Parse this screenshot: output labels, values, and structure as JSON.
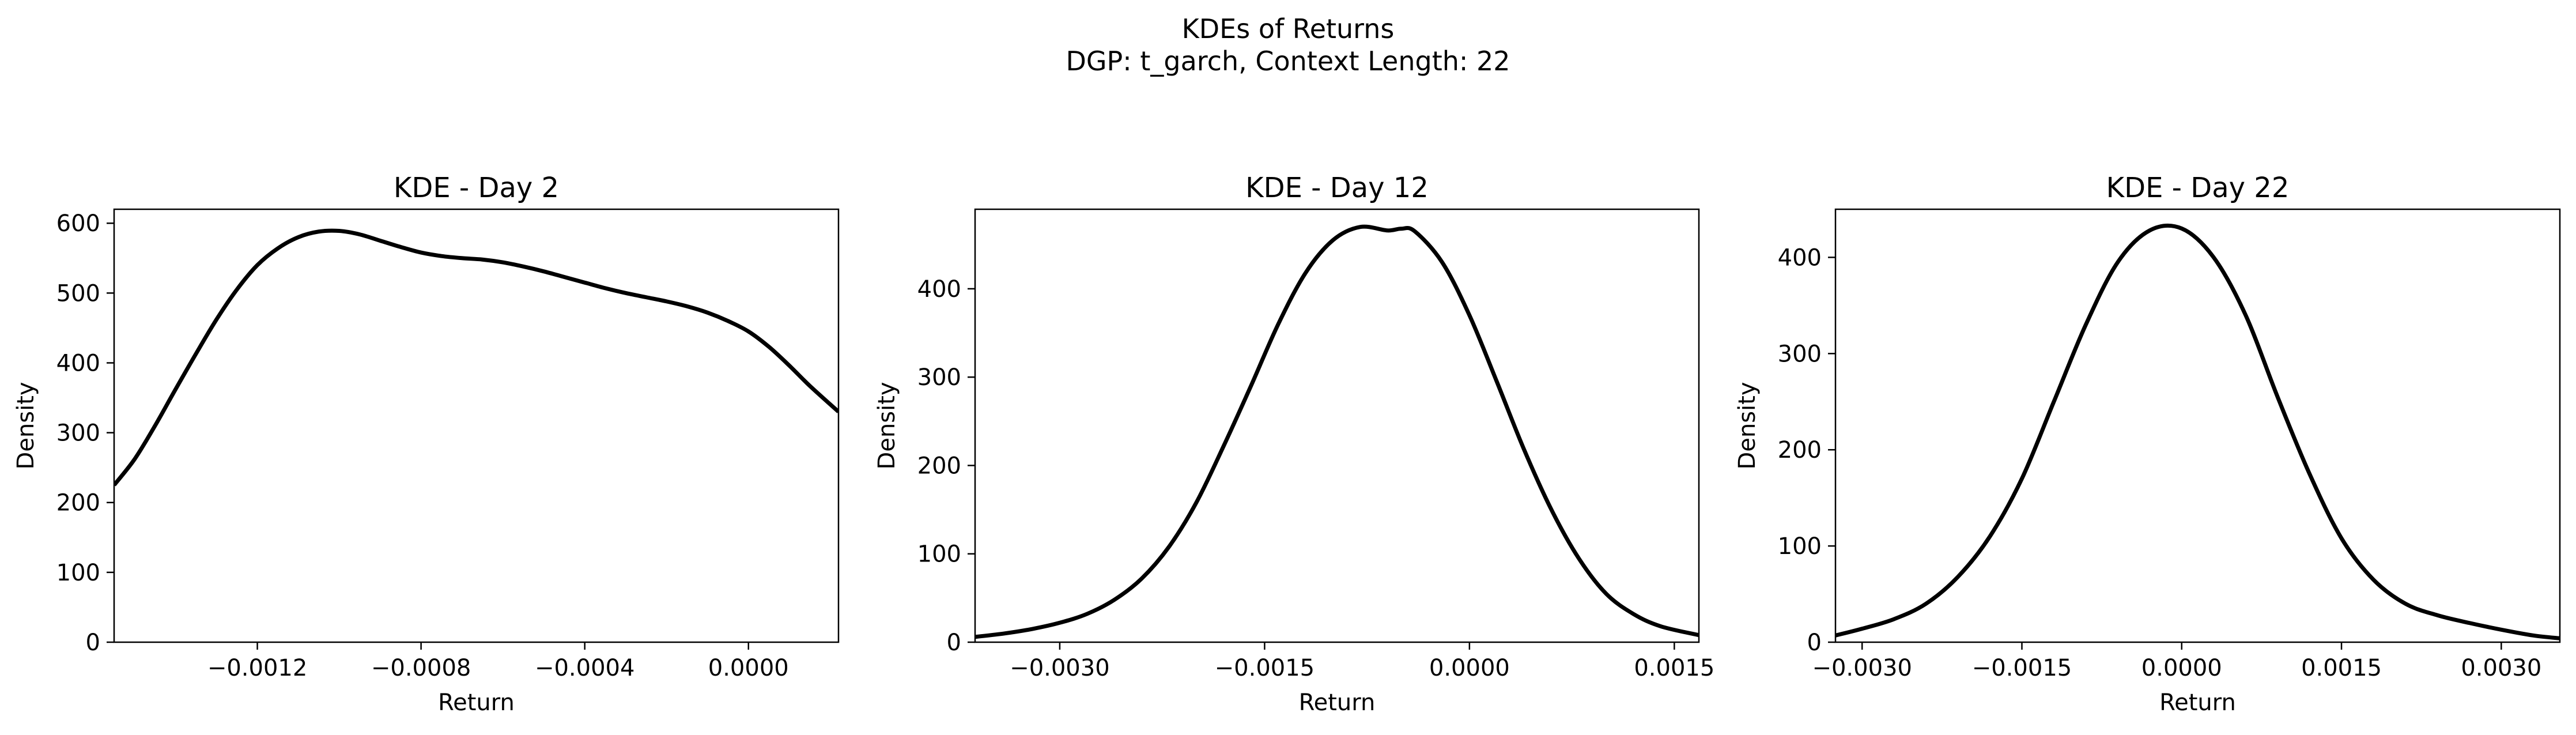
{
  "figure": {
    "suptitle_line1": "KDEs of Returns",
    "suptitle_line2": "DGP: t_garch, Context Length: 22"
  },
  "colors": {
    "line": "#000000",
    "axes": "#000000",
    "background": "#ffffff"
  },
  "chart_data": [
    {
      "type": "line",
      "title": "KDE - Day 2",
      "xlabel": "Return",
      "ylabel": "Density",
      "xlim": [
        -0.00155,
        0.00022
      ],
      "ylim": [
        0,
        620
      ],
      "xticks": [
        -0.0012,
        -0.0008,
        -0.0004,
        0.0
      ],
      "xtick_labels": [
        "−0.0012",
        "−0.0008",
        "−0.0004",
        "0.0000"
      ],
      "yticks": [
        0,
        100,
        200,
        300,
        400,
        500,
        600
      ],
      "ytick_labels": [
        "0",
        "100",
        "200",
        "300",
        "400",
        "500",
        "600"
      ],
      "grid": false,
      "series": [
        {
          "x": [
            -0.00155,
            -0.0015,
            -0.00145,
            -0.0014,
            -0.00135,
            -0.0013,
            -0.00125,
            -0.0012,
            -0.00115,
            -0.0011,
            -0.00105,
            -0.001,
            -0.00095,
            -0.0009,
            -0.00085,
            -0.0008,
            -0.00075,
            -0.0007,
            -0.00065,
            -0.0006,
            -0.00055,
            -0.0005,
            -0.00045,
            -0.0004,
            -0.00035,
            -0.0003,
            -0.00025,
            -0.0002,
            -0.00015,
            -0.0001,
            -5e-05,
            0.0,
            5e-05,
            0.0001,
            0.00015,
            0.00022
          ],
          "y": [
            225,
            262,
            310,
            362,
            413,
            462,
            505,
            540,
            564,
            580,
            588,
            589,
            584,
            575,
            566,
            558,
            553,
            550,
            548,
            544,
            538,
            531,
            523,
            515,
            507,
            500,
            494,
            488,
            481,
            472,
            460,
            445,
            423,
            396,
            367,
            330
          ]
        }
      ]
    },
    {
      "type": "line",
      "title": "KDE - Day 12",
      "xlabel": "Return",
      "ylabel": "Density",
      "xlim": [
        -0.00362,
        0.00168
      ],
      "ylim": [
        0,
        490
      ],
      "xticks": [
        -0.003,
        -0.0015,
        0.0,
        0.0015
      ],
      "xtick_labels": [
        "−0.0030",
        "−0.0015",
        "0.0000",
        "0.0015"
      ],
      "yticks": [
        0,
        100,
        200,
        300,
        400
      ],
      "ytick_labels": [
        "0",
        "100",
        "200",
        "300",
        "400"
      ],
      "grid": false,
      "series": [
        {
          "x": [
            -0.00362,
            -0.0034,
            -0.0032,
            -0.003,
            -0.0028,
            -0.0026,
            -0.0024,
            -0.0022,
            -0.002,
            -0.0018,
            -0.0016,
            -0.0014,
            -0.0012,
            -0.001,
            -0.0008,
            -0.0006,
            -0.0005,
            -0.0004,
            -0.0002,
            0.0,
            0.0002,
            0.0004,
            0.0006,
            0.0008,
            0.001,
            0.0012,
            0.0014,
            0.00168
          ],
          "y": [
            6,
            10,
            15,
            22,
            32,
            48,
            72,
            108,
            158,
            222,
            290,
            360,
            418,
            455,
            470,
            466,
            468,
            465,
            430,
            370,
            295,
            218,
            150,
            95,
            55,
            32,
            18,
            8
          ]
        }
      ]
    },
    {
      "type": "line",
      "title": "KDE - Day 22",
      "xlabel": "Return",
      "ylabel": "Density",
      "xlim": [
        -0.00325,
        0.00355
      ],
      "ylim": [
        0,
        450
      ],
      "xticks": [
        -0.003,
        -0.0015,
        0.0,
        0.0015,
        0.003
      ],
      "xtick_labels": [
        "−0.0030",
        "−0.0015",
        "0.0000",
        "0.0015",
        "0.0030"
      ],
      "yticks": [
        0,
        100,
        200,
        300,
        400
      ],
      "ytick_labels": [
        "0",
        "100",
        "200",
        "300",
        "400"
      ],
      "grid": false,
      "series": [
        {
          "x": [
            -0.00325,
            -0.003,
            -0.0027,
            -0.0024,
            -0.0021,
            -0.0018,
            -0.0015,
            -0.0012,
            -0.0009,
            -0.0006,
            -0.0003,
            0.0,
            0.0003,
            0.0006,
            0.0009,
            0.0012,
            0.0015,
            0.0018,
            0.0021,
            0.0024,
            0.0027,
            0.003,
            0.0033,
            0.00355
          ],
          "y": [
            7,
            14,
            24,
            40,
            68,
            110,
            170,
            250,
            330,
            395,
            428,
            430,
            400,
            340,
            255,
            175,
            108,
            65,
            40,
            28,
            20,
            13,
            7,
            4
          ]
        }
      ]
    }
  ]
}
